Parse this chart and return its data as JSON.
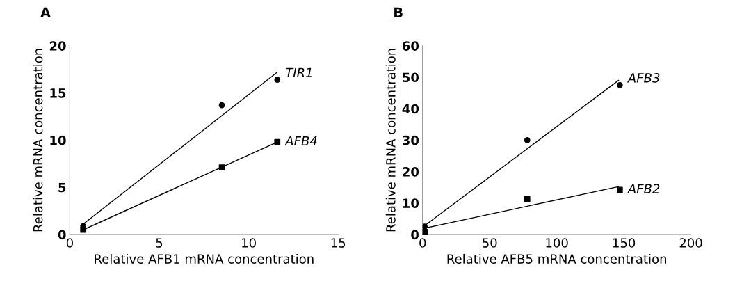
{
  "chart_data": [
    {
      "type": "scatter",
      "title": "A",
      "xlabel": "Relative AFB1 mRNA concentration",
      "ylabel": "Relative mRNA concentration",
      "xlim": [
        0,
        15
      ],
      "xticks": [
        0,
        5,
        10,
        15
      ],
      "ylim": [
        0,
        20
      ],
      "yticks": [
        0,
        5,
        10,
        15,
        20
      ],
      "grid": false,
      "legend": false,
      "series": [
        {
          "name": "TIR1",
          "color": "#000000",
          "marker": "circle",
          "x": [
            0.75,
            8.5,
            11.6
          ],
          "values": [
            0.9,
            13.7,
            16.4
          ]
        },
        {
          "name": "AFB4",
          "color": "#000000",
          "marker": "square",
          "x": [
            0.75,
            8.5,
            11.6
          ],
          "values": [
            0.5,
            7.1,
            9.8
          ]
        },
        {
          "type": "line",
          "color": "#000000",
          "marker": "none",
          "x": [
            0.75,
            11.6
          ],
          "values": [
            1.1,
            17.2
          ]
        },
        {
          "type": "line",
          "color": "#000000",
          "marker": "none",
          "x": [
            0.75,
            11.6
          ],
          "values": [
            0.5,
            9.8
          ]
        }
      ]
    },
    {
      "type": "scatter",
      "title": "B",
      "xlabel": "Relative AFB5 mRNA concentration",
      "ylabel": "Relative mRNA concentration",
      "xlim": [
        0,
        200
      ],
      "xticks": [
        0,
        50,
        100,
        150,
        200
      ],
      "ylim": [
        0,
        60
      ],
      "yticks": [
        0,
        10,
        20,
        30,
        40,
        50,
        60
      ],
      "grid": false,
      "legend": false,
      "series": [
        {
          "name": "AFB3",
          "color": "#000000",
          "marker": "circle",
          "x": [
            1.5,
            78,
            147
          ],
          "values": [
            2.5,
            30,
            47.5
          ]
        },
        {
          "name": "AFB2",
          "color": "#000000",
          "marker": "square",
          "x": [
            1.5,
            78,
            147
          ],
          "values": [
            0.8,
            11.2,
            14.2
          ]
        },
        {
          "type": "line",
          "color": "#000000",
          "marker": "none",
          "x": [
            1.5,
            146
          ],
          "values": [
            2.8,
            49
          ]
        },
        {
          "type": "line",
          "color": "#000000",
          "marker": "none",
          "x": [
            1.5,
            146
          ],
          "values": [
            2,
            15.2
          ]
        }
      ]
    }
  ]
}
